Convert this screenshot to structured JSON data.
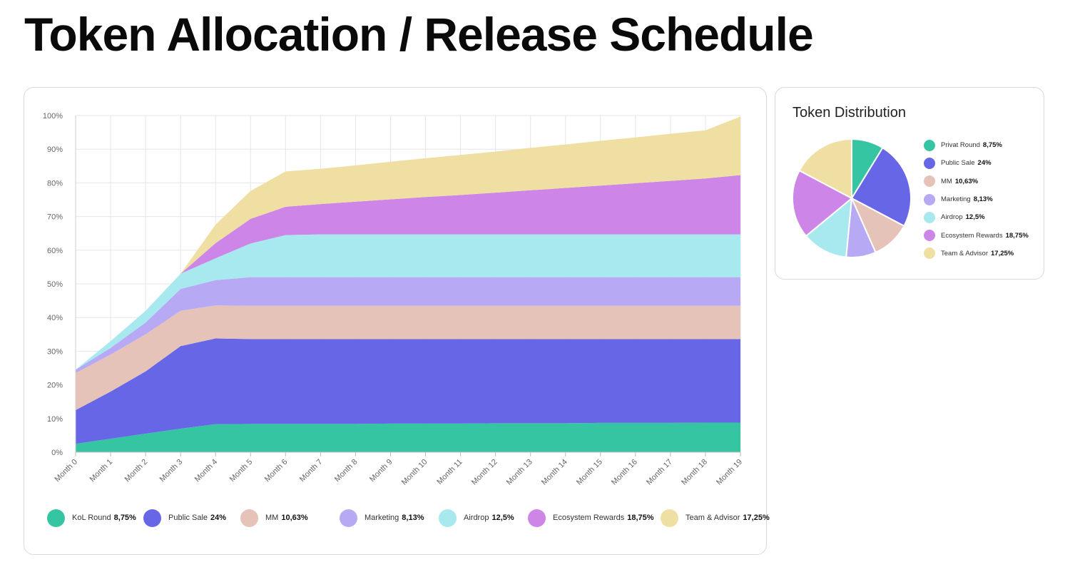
{
  "page": {
    "title": "Token Allocation / Release Schedule"
  },
  "chart_data": [
    {
      "type": "area",
      "stacked": true,
      "title": "",
      "xlabel": "",
      "ylabel": "",
      "ylim": [
        0,
        100
      ],
      "y_ticks": [
        "0%",
        "10%",
        "20%",
        "30%",
        "40%",
        "50%",
        "60%",
        "70%",
        "80%",
        "90%",
        "100%"
      ],
      "grid": true,
      "categories": [
        "Month 0",
        "Month 1",
        "Month 2",
        "Month 3",
        "Month 4",
        "Month 5",
        "Month 6",
        "Month 7",
        "Month 8",
        "Month 9",
        "Month 10",
        "Month 11",
        "Month 12",
        "Month 13",
        "Month 14",
        "Month 15",
        "Month 16",
        "Month 17",
        "Month 18",
        "Month 19"
      ],
      "series": [
        {
          "name": "KoL Round",
          "pct": "8,75%",
          "color": "#36c5a2",
          "values": [
            2.5,
            4,
            5.5,
            7,
            8.3,
            8.4,
            8.4,
            8.4,
            8.4,
            8.5,
            8.5,
            8.5,
            8.6,
            8.6,
            8.6,
            8.7,
            8.7,
            8.7,
            8.8,
            8.8
          ]
        },
        {
          "name": "Public Sale",
          "pct": "24%",
          "color": "#6666e6",
          "values": [
            10,
            14,
            18.5,
            24.5,
            25.5,
            25.2,
            25.2,
            25.2,
            25.2,
            25.1,
            25.1,
            25.1,
            25.0,
            25.0,
            25.0,
            24.9,
            24.9,
            24.9,
            24.8,
            24.8
          ]
        },
        {
          "name": "MM",
          "pct": "10,63%",
          "color": "#e6c3b8",
          "values": [
            11,
            11,
            11,
            10.5,
            9.8,
            9.9,
            9.9,
            9.9,
            9.9,
            9.9,
            9.9,
            9.9,
            9.9,
            9.9,
            9.9,
            9.9,
            9.9,
            9.9,
            9.9,
            9.9
          ]
        },
        {
          "name": "Marketing",
          "pct": "8,13%",
          "color": "#b8a9f5",
          "values": [
            1,
            2,
            3.5,
            6.5,
            7.5,
            8.5,
            8.5,
            8.5,
            8.5,
            8.5,
            8.5,
            8.5,
            8.5,
            8.5,
            8.5,
            8.5,
            8.5,
            8.5,
            8.5,
            8.5
          ]
        },
        {
          "name": "Airdrop",
          "pct": "12,5%",
          "color": "#a8e9ef",
          "values": [
            0,
            2,
            3.5,
            4.5,
            6.5,
            10,
            12.5,
            12.7,
            12.7,
            12.7,
            12.7,
            12.7,
            12.7,
            12.7,
            12.7,
            12.7,
            12.7,
            12.7,
            12.7,
            12.7
          ]
        },
        {
          "name": "Ecosystem Rewards",
          "pct": "18,75%",
          "color": "#cd85e8",
          "values": [
            0,
            0,
            0,
            0,
            4.5,
            7.3,
            8.4,
            9.0,
            9.7,
            10.4,
            11.1,
            11.7,
            12.4,
            13.1,
            13.8,
            14.5,
            15.2,
            15.9,
            16.6,
            17.6
          ]
        },
        {
          "name": "Team & Advisor",
          "pct": "17,25%",
          "color": "#f0dfa2",
          "values": [
            0,
            0,
            0,
            0,
            5.5,
            8.3,
            10.5,
            10.5,
            10.8,
            11.2,
            11.5,
            11.9,
            12.2,
            12.6,
            12.9,
            13.3,
            13.6,
            14.0,
            14.3,
            17.4
          ]
        }
      ]
    },
    {
      "type": "pie",
      "title": "Token Distribution",
      "slices": [
        {
          "label": "Privat Round",
          "pct": "8,75%",
          "value": 8.75,
          "color": "#36c5a2"
        },
        {
          "label": "Public Sale",
          "pct": "24%",
          "value": 24,
          "color": "#6666e6"
        },
        {
          "label": "MM",
          "pct": "10,63%",
          "value": 10.63,
          "color": "#e6c3b8"
        },
        {
          "label": "Marketing",
          "pct": "8,13%",
          "value": 8.13,
          "color": "#b8a9f5"
        },
        {
          "label": "Airdrop",
          "pct": "12,5%",
          "value": 12.5,
          "color": "#a8e9ef"
        },
        {
          "label": "Ecosystem Rewards",
          "pct": "18,75%",
          "value": 18.75,
          "color": "#cd85e8"
        },
        {
          "label": "Team & Advisor",
          "pct": "17,25%",
          "value": 17.25,
          "color": "#f0dfa2"
        }
      ]
    }
  ]
}
